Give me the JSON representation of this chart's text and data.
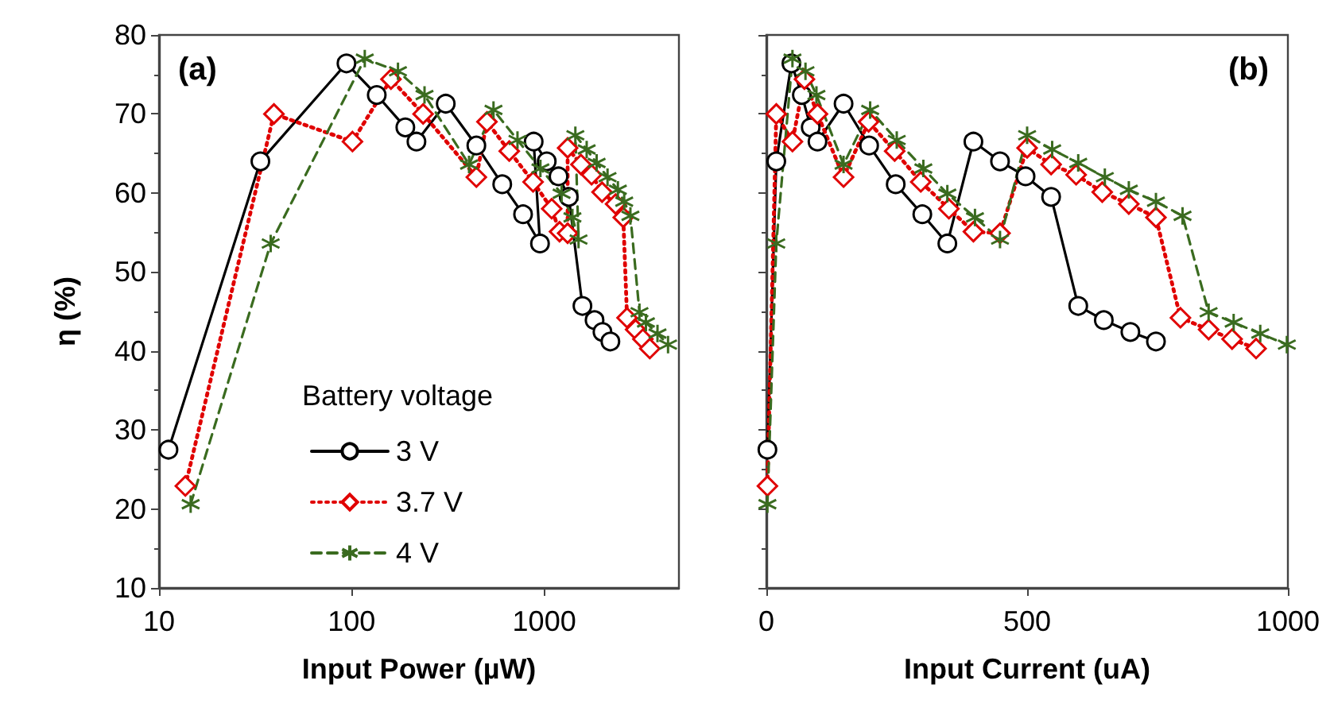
{
  "chart_data": [
    {
      "type": "line",
      "xlabel": "Input Power (µW)",
      "ylabel": "η (%)",
      "log": "x",
      "xlim": [
        10,
        5000
      ],
      "xticks": [
        10,
        100,
        1000
      ],
      "ylim": [
        10,
        80
      ],
      "yticks": [
        10,
        20,
        30,
        40,
        50,
        60,
        70,
        80
      ],
      "legend": "bottom",
      "legend_title": "Battery voltage",
      "annotations": [
        "(a)"
      ],
      "series": [
        {
          "name": "3 V",
          "color": "#000000",
          "marker": "circle",
          "line_style": "solid",
          "x": [
            11.2,
            33.6,
            94,
            135,
            190,
            217,
            308,
            444,
            605,
            776,
            950,
            881,
            1030,
            1186,
            1340,
            1578,
            1824,
            2005,
            2204
          ],
          "values": [
            27.5,
            64,
            76.4,
            72.4,
            68.3,
            66.5,
            71.3,
            66,
            61.1,
            57.3,
            53.6,
            66.5,
            64,
            62.1,
            59.5,
            45.7,
            43.9,
            42.4,
            41.2
          ]
        },
        {
          "name": "3.7 V",
          "color": "#e00000",
          "marker": "diamond",
          "line_style": "dotted",
          "x": [
            13.7,
            39.5,
            101,
            160,
            235,
            444,
            504,
            658,
            875,
            1093,
            1200,
            1322,
            1322,
            1550,
            1760,
            1995,
            2345,
            2570,
            2690,
            2980,
            3250,
            3530
          ],
          "values": [
            22.9,
            70,
            66.5,
            74.4,
            70,
            62,
            69,
            65.3,
            61.4,
            58,
            55.1,
            54.9,
            65.7,
            63.6,
            62.3,
            60.1,
            58.6,
            56.9,
            44.2,
            42.7,
            41.5,
            40.3
          ]
        },
        {
          "name": "4 V",
          "color": "#3a6b1f",
          "marker": "cross",
          "line_style": "dashed",
          "x": [
            14.6,
            38,
            117,
            174,
            239,
            407,
            545,
            726,
            955,
            1230,
            1400,
            1506,
            1450,
            1660,
            1870,
            2130,
            2410,
            2600,
            2800,
            3120,
            3370,
            3870,
            4390
          ],
          "values": [
            20.6,
            53.6,
            77,
            75.4,
            72.4,
            63.6,
            70.5,
            66.7,
            63.1,
            59.9,
            56.9,
            54.1,
            67.3,
            65.5,
            63.8,
            62,
            60.4,
            58.9,
            57.1,
            44.9,
            43.6,
            42.2,
            40.8
          ]
        }
      ]
    },
    {
      "type": "line",
      "xlabel": "Input Current (uA)",
      "xlim": [
        0,
        1000
      ],
      "xticks": [
        0,
        500,
        1000
      ],
      "ylim": [
        10,
        80
      ],
      "yticks": [
        10,
        20,
        30,
        40,
        50,
        60,
        70,
        80
      ],
      "tick_labels": "x",
      "annotations": [
        "(b)"
      ],
      "series": [
        {
          "color": "#000000",
          "marker": "circle",
          "line_style": "solid",
          "x": [
            2,
            19,
            48,
            68,
            85,
            98,
            148,
            197,
            248,
            299,
            347,
            397,
            448,
            497,
            546,
            598,
            647,
            698,
            747
          ],
          "values": [
            27.5,
            64,
            76.4,
            72.4,
            68.3,
            66.5,
            71.3,
            66,
            61.1,
            57.3,
            53.6,
            66.5,
            64,
            62.1,
            59.5,
            45.7,
            43.9,
            42.4,
            41.2
          ]
        },
        {
          "color": "#e00000",
          "marker": "diamond",
          "line_style": "dotted",
          "x": [
            2,
            19,
            50,
            73,
            98,
            148,
            196,
            246,
            296,
            350,
            397,
            448,
            500,
            546,
            594,
            644,
            695,
            747,
            794,
            848,
            893,
            939
          ],
          "values": [
            22.9,
            70,
            66.5,
            74.4,
            70,
            62,
            69,
            65.3,
            61.4,
            58,
            55.1,
            54.9,
            65.7,
            63.6,
            62.3,
            60.1,
            58.6,
            56.9,
            44.2,
            42.7,
            41.5,
            40.3
          ]
        },
        {
          "color": "#3a6b1f",
          "marker": "cross",
          "line_style": "dashed",
          "x": [
            2,
            19,
            50,
            75,
            96,
            148,
            199,
            250,
            301,
            347,
            400,
            448,
            500,
            548,
            598,
            649,
            695,
            747,
            798,
            848,
            896,
            947,
            998
          ],
          "values": [
            20.6,
            53.6,
            77,
            75.4,
            72.4,
            63.6,
            70.5,
            66.7,
            63.1,
            59.9,
            56.9,
            54.1,
            67.3,
            65.5,
            63.8,
            62,
            60.4,
            58.9,
            57.1,
            44.9,
            43.6,
            42.2,
            40.8
          ]
        }
      ]
    }
  ]
}
